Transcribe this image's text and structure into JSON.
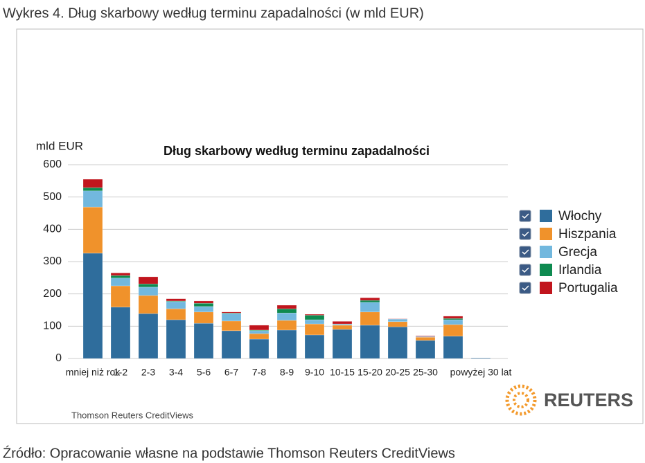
{
  "caption": "Wykres 4. Dług skarbowy według terminu zapadalności (w mld EUR)",
  "source": "Źródło: Opracowanie własne na podstawie Thomson Reuters CreditViews",
  "chart_data": {
    "type": "bar",
    "stacked": true,
    "title": "Dług skarbowy według terminu zapadalności",
    "y_label": "mld EUR",
    "credit": "Thomson Reuters CreditViews",
    "brand": "REUTERS",
    "categories": [
      "mniej niż rok",
      "1-2",
      "2-3",
      "3-4",
      "5-6",
      "6-7",
      "7-8",
      "8-9",
      "9-10",
      "10-15",
      "15-20",
      "20-25",
      "25-30",
      null,
      "powyżej 30 lat"
    ],
    "series": [
      {
        "name": "Włochy",
        "color": "#2f6d9c",
        "values": [
          326,
          159,
          139,
          120,
          109,
          86,
          60,
          88,
          73,
          90,
          103,
          98,
          56,
          69,
          2
        ]
      },
      {
        "name": "Hiszpania",
        "color": "#f0922b",
        "values": [
          143,
          66,
          56,
          34,
          35,
          30,
          17,
          30,
          34,
          13,
          41,
          16,
          10,
          36,
          0
        ]
      },
      {
        "name": "Grecja",
        "color": "#72b8de",
        "values": [
          50,
          24,
          26,
          22,
          17,
          23,
          9,
          23,
          13,
          3,
          30,
          8,
          2,
          15,
          0
        ]
      },
      {
        "name": "Irlandia",
        "color": "#0e8a50",
        "values": [
          10,
          8,
          10,
          2,
          10,
          2,
          2,
          13,
          14,
          1,
          6,
          0,
          0,
          4,
          0
        ]
      },
      {
        "name": "Portugalia",
        "color": "#c1151d",
        "values": [
          26,
          8,
          22,
          7,
          7,
          3,
          15,
          11,
          3,
          8,
          8,
          1,
          2,
          7,
          0
        ]
      }
    ],
    "ylim": [
      0,
      600
    ],
    "yticks": [
      0,
      100,
      200,
      300,
      400,
      500,
      600
    ],
    "grid": true,
    "legend": "right"
  }
}
